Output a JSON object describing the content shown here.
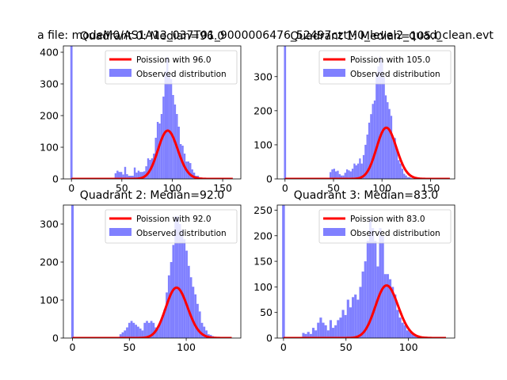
{
  "suptitle": "a file: modeM0/AS1A13_037T01_9000006476_52497cztM0_level2_quad_clean.evt",
  "colors": {
    "poisson": "#ff0000",
    "observed": "#8080ff"
  },
  "chart_data": [
    {
      "type": "bar",
      "title": "Quadrant 0: Median=96.0",
      "xlim": [
        -8,
        168
      ],
      "ylim": [
        0,
        420
      ],
      "xticks": [
        0,
        50,
        100,
        150
      ],
      "yticks": [
        0,
        100,
        200,
        300,
        400
      ],
      "legend": {
        "position": "top-right",
        "entries": [
          "Poission with 96.0",
          "Observed distribution"
        ]
      },
      "spike": {
        "x": 0,
        "value": 420
      },
      "hist_edges": [
        20,
        155
      ],
      "hist_values": [
        0,
        0,
        0,
        0,
        0,
        0,
        0,
        0,
        0,
        0,
        0,
        0,
        18,
        26,
        22,
        22,
        14,
        38,
        15,
        10,
        10,
        10,
        36,
        20,
        26,
        22,
        22,
        24,
        40,
        65,
        60,
        65,
        80,
        130,
        180,
        175,
        205,
        260,
        340,
        385,
        330,
        315,
        265,
        235,
        205,
        165,
        110,
        105,
        80,
        55,
        55,
        50,
        30,
        20,
        10,
        10,
        5,
        3,
        2,
        0,
        0,
        0,
        0,
        0,
        0,
        0,
        0,
        0,
        0,
        0,
        0
      ],
      "poisson": {
        "mean": 96.0,
        "scale": 3745,
        "xmin": 0,
        "xmax": 160
      }
    },
    {
      "type": "bar",
      "title": "Quadrant 1: Median=105.0",
      "xlim": [
        -8,
        175
      ],
      "ylim": [
        0,
        390
      ],
      "xticks": [
        0,
        50,
        100,
        150
      ],
      "yticks": [
        0,
        100,
        200,
        300
      ],
      "legend": {
        "position": "top-right",
        "entries": [
          "Poission with 105.0",
          "Observed distribution"
        ]
      },
      "spike": {
        "x": 0,
        "value": 390
      },
      "hist_edges": [
        25,
        160
      ],
      "hist_values": [
        0,
        0,
        0,
        0,
        0,
        0,
        0,
        0,
        0,
        0,
        0,
        20,
        28,
        30,
        22,
        24,
        14,
        10,
        10,
        18,
        28,
        25,
        22,
        30,
        45,
        40,
        45,
        60,
        45,
        70,
        100,
        130,
        165,
        190,
        220,
        230,
        310,
        330,
        360,
        350,
        300,
        245,
        225,
        205,
        185,
        115,
        120,
        90,
        55,
        45,
        30,
        15,
        10,
        5,
        5,
        2,
        0,
        0,
        0,
        0,
        0,
        0,
        0,
        0,
        0,
        0,
        0,
        0,
        0,
        0,
        0
      ],
      "poisson": {
        "mean": 105.0,
        "scale": 3860,
        "xmin": 0,
        "xmax": 170
      }
    },
    {
      "type": "bar",
      "title": "Quadrant 2: Median=92.0",
      "xlim": [
        -8,
        148
      ],
      "ylim": [
        0,
        350
      ],
      "xticks": [
        0,
        50,
        100
      ],
      "yticks": [
        0,
        100,
        200,
        300
      ],
      "legend": {
        "position": "top-right",
        "entries": [
          "Poission with 92.0",
          "Observed distribution"
        ]
      },
      "spike": {
        "x": 0,
        "value": 350
      },
      "hist_edges": [
        20,
        140
      ],
      "hist_values": [
        0,
        0,
        0,
        0,
        0,
        0,
        0,
        0,
        0,
        0,
        0,
        10,
        15,
        20,
        28,
        40,
        45,
        40,
        35,
        30,
        25,
        20,
        40,
        45,
        40,
        45,
        40,
        28,
        25,
        40,
        55,
        75,
        120,
        165,
        200,
        245,
        320,
        320,
        300,
        285,
        260,
        230,
        190,
        160,
        135,
        115,
        90,
        70,
        40,
        30,
        20,
        10,
        8,
        5,
        3,
        0,
        0,
        0,
        0,
        0,
        0,
        0
      ],
      "poisson": {
        "mean": 92.0,
        "scale": 3190,
        "xmin": 0,
        "xmax": 140
      }
    },
    {
      "type": "bar",
      "title": "Quadrant 3: Median=83.0",
      "xlim": [
        -5,
        137
      ],
      "ylim": [
        0,
        260
      ],
      "xticks": [
        0,
        50,
        100
      ],
      "yticks": [
        0,
        50,
        100,
        150,
        200,
        250
      ],
      "legend": {
        "position": "top-right",
        "entries": [
          "Poission with 83.0",
          "Observed distribution"
        ]
      },
      "spike": {
        "x": 0,
        "value": 260
      },
      "hist_edges": [
        5,
        130
      ],
      "hist_values": [
        0,
        0,
        0,
        0,
        0,
        10,
        8,
        12,
        8,
        20,
        15,
        30,
        40,
        30,
        25,
        15,
        35,
        20,
        25,
        35,
        40,
        55,
        45,
        75,
        60,
        80,
        85,
        75,
        100,
        130,
        150,
        190,
        235,
        215,
        190,
        140,
        215,
        200,
        125,
        125,
        115,
        100,
        85,
        55,
        40,
        30,
        25,
        15,
        12,
        10,
        5,
        2,
        0,
        0,
        0,
        0,
        0,
        0,
        0,
        0,
        0,
        0,
        0
      ],
      "poisson": {
        "mean": 83.0,
        "scale": 2350,
        "xmin": 0,
        "xmax": 130
      }
    }
  ]
}
